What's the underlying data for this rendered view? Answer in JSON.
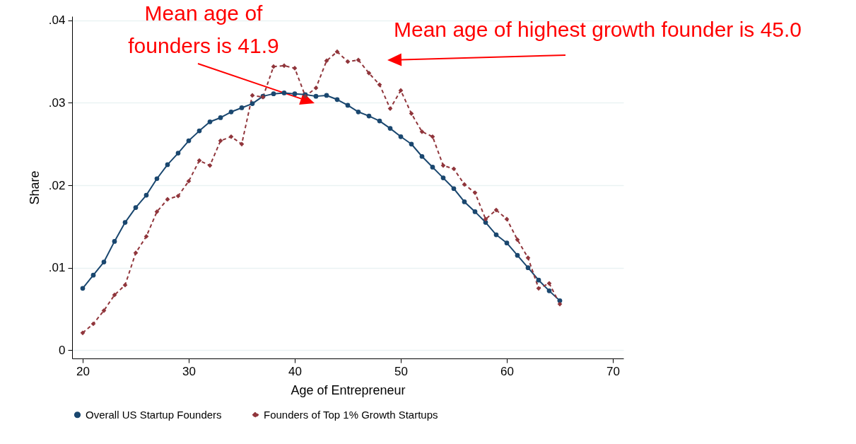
{
  "chart_data": {
    "type": "line",
    "xlabel": "Age of Entrepreneur",
    "ylabel": "Share",
    "x": [
      20,
      21,
      22,
      23,
      24,
      25,
      26,
      27,
      28,
      29,
      30,
      31,
      32,
      33,
      34,
      35,
      36,
      37,
      38,
      39,
      40,
      41,
      42,
      43,
      44,
      45,
      46,
      47,
      48,
      49,
      50,
      51,
      52,
      53,
      54,
      55,
      56,
      57,
      58,
      59,
      60,
      61,
      62,
      63,
      64,
      65
    ],
    "series": [
      {
        "name": "Overall US Startup Founders",
        "color": "#1a476f",
        "marker": "circle",
        "line_style": "solid",
        "values": [
          0.0075,
          0.0091,
          0.0107,
          0.0132,
          0.0155,
          0.0173,
          0.0188,
          0.0208,
          0.0225,
          0.0239,
          0.0254,
          0.0266,
          0.0277,
          0.0282,
          0.0289,
          0.0294,
          0.0299,
          0.0308,
          0.0311,
          0.0312,
          0.0311,
          0.031,
          0.0308,
          0.0309,
          0.0304,
          0.0297,
          0.0289,
          0.0284,
          0.0278,
          0.0269,
          0.0259,
          0.025,
          0.0235,
          0.0222,
          0.0209,
          0.0196,
          0.018,
          0.0168,
          0.0155,
          0.014,
          0.013,
          0.0115,
          0.01,
          0.0085,
          0.0072,
          0.006
        ]
      },
      {
        "name": "Founders of Top 1% Growth Startups",
        "color": "#90353b",
        "marker": "diamond",
        "line_style": "dashed",
        "values": [
          0.0021,
          0.0032,
          0.0048,
          0.0067,
          0.0079,
          0.0118,
          0.0138,
          0.0168,
          0.0183,
          0.0187,
          0.0205,
          0.023,
          0.0224,
          0.0254,
          0.0259,
          0.025,
          0.0309,
          0.0307,
          0.0344,
          0.0345,
          0.0342,
          0.0308,
          0.0318,
          0.0351,
          0.0362,
          0.035,
          0.0352,
          0.0336,
          0.0322,
          0.0293,
          0.0315,
          0.0287,
          0.0265,
          0.0259,
          0.0224,
          0.022,
          0.0201,
          0.0191,
          0.0159,
          0.017,
          0.0159,
          0.0134,
          0.0112,
          0.0075,
          0.0081,
          0.0056
        ]
      }
    ],
    "xlim": [
      19,
      71
    ],
    "xticks": [
      20,
      30,
      40,
      50,
      60,
      70
    ],
    "ylim": [
      -0.001,
      0.0405
    ],
    "yticks": [
      {
        "value": 0,
        "label": "0"
      },
      {
        "value": 0.01,
        "label": ".01"
      },
      {
        "value": 0.02,
        "label": ".02"
      },
      {
        "value": 0.03,
        "label": ".03"
      },
      {
        "value": 0.04,
        "label": ".04"
      }
    ],
    "grid": "y",
    "legend": "bottom",
    "annotations": [
      "Mean age of founders is 41.9",
      "Mean age of highest growth founder is 45.0"
    ]
  }
}
